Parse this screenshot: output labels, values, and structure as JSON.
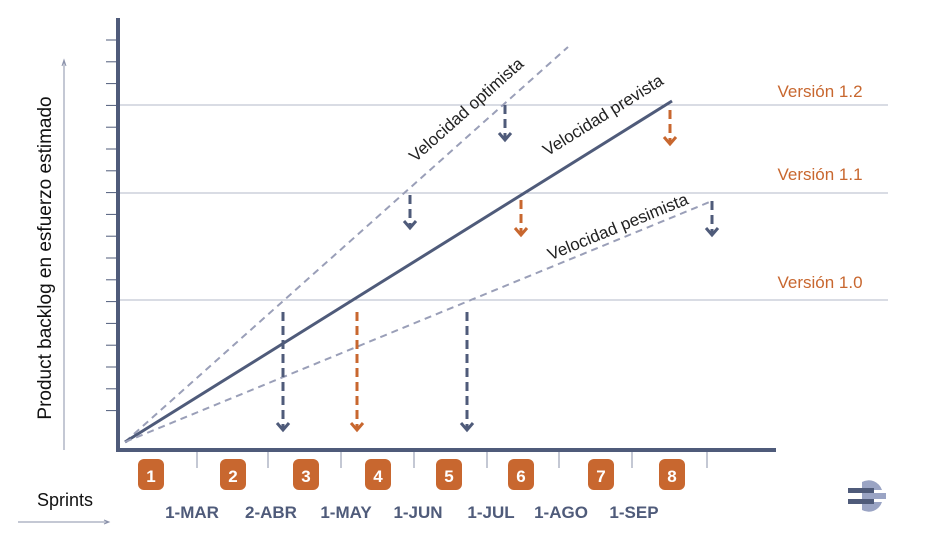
{
  "colors": {
    "axis": "#4f5b7a",
    "accent": "#c8672f",
    "dashed": "#9a9fb8",
    "grid": "#b3b8c9",
    "badge_text": "#ffffff"
  },
  "y_axis_label": "Product backlog en esfuerzo estimado",
  "x_axis_label": "Sprints",
  "versions": [
    {
      "label": "Versión 1.2"
    },
    {
      "label": "Versión 1.1"
    },
    {
      "label": "Versión 1.0"
    }
  ],
  "lines": [
    {
      "label": "Velocidad optimista",
      "style": "dashed"
    },
    {
      "label": "Velocidad prevista",
      "style": "solid"
    },
    {
      "label": "Velocidad pesimista",
      "style": "dashed"
    }
  ],
  "sprints": [
    "1",
    "2",
    "3",
    "4",
    "5",
    "6",
    "7",
    "8"
  ],
  "dates": [
    "1-MAR",
    "2-ABR",
    "1-MAY",
    "1-JUN",
    "1-JUL",
    "1-AGO",
    "1-SEP"
  ],
  "logo_icon": "company-logo-icon"
}
